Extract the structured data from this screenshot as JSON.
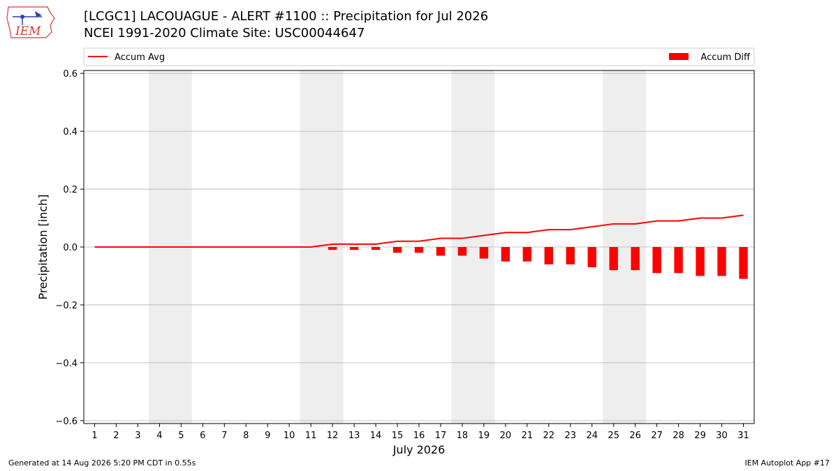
{
  "header": {
    "title": "[LCGC1] LACOUAGUE - ALERT #1100 :: Precipitation for Jul 2026",
    "subtitle": "NCEI 1991-2020 Climate Site: USC00044647",
    "logo_text": "IEM"
  },
  "footer": {
    "generated": "Generated at 14 Aug 2026 5:20 PM CDT in 0.55s",
    "app": "IEM Autoplot App #17"
  },
  "colors": {
    "accum_avg": "#ff0000",
    "accum_diff": "#ff0000",
    "weekend_shade": "#eeeeee",
    "grid": "#b0b0b0",
    "logo": "#2a3fb5"
  },
  "chart_data": {
    "type": "bar",
    "xlabel": "July 2026",
    "ylabel": "Precipitation [inch]",
    "xlim": [
      0.5,
      31.5
    ],
    "ylim": [
      -0.61,
      0.61
    ],
    "yticks": [
      -0.6,
      -0.4,
      -0.2,
      0.0,
      0.2,
      0.4,
      0.6
    ],
    "ytick_labels": [
      "−0.6",
      "−0.4",
      "−0.2",
      "0.0",
      "0.2",
      "0.4",
      "0.6"
    ],
    "grid": "horizontal",
    "legend": [
      {
        "label": "Accum Avg",
        "kind": "line",
        "position": "top-left"
      },
      {
        "label": "Accum Diff",
        "kind": "bar",
        "position": "top-right"
      }
    ],
    "shaded_weekends": [
      [
        3.5,
        5.5
      ],
      [
        10.5,
        12.5
      ],
      [
        17.5,
        19.5
      ],
      [
        24.5,
        26.5
      ]
    ],
    "x": [
      1,
      2,
      3,
      4,
      5,
      6,
      7,
      8,
      9,
      10,
      11,
      12,
      13,
      14,
      15,
      16,
      17,
      18,
      19,
      20,
      21,
      22,
      23,
      24,
      25,
      26,
      27,
      28,
      29,
      30,
      31
    ],
    "series": [
      {
        "name": "Accum Avg",
        "type": "line",
        "values": [
          0,
          0,
          0,
          0,
          0,
          0,
          0,
          0,
          0,
          0,
          0,
          0.01,
          0.01,
          0.01,
          0.02,
          0.02,
          0.03,
          0.03,
          0.04,
          0.05,
          0.05,
          0.06,
          0.06,
          0.07,
          0.08,
          0.08,
          0.09,
          0.09,
          0.1,
          0.1,
          0.11
        ]
      },
      {
        "name": "Accum Diff",
        "type": "bar",
        "values": [
          0,
          0,
          0,
          0,
          0,
          0,
          0,
          0,
          0,
          0,
          0,
          -0.01,
          -0.01,
          -0.01,
          -0.02,
          -0.02,
          -0.03,
          -0.03,
          -0.04,
          -0.05,
          -0.05,
          -0.06,
          -0.06,
          -0.07,
          -0.08,
          -0.08,
          -0.09,
          -0.09,
          -0.1,
          -0.1,
          -0.11
        ]
      }
    ]
  }
}
